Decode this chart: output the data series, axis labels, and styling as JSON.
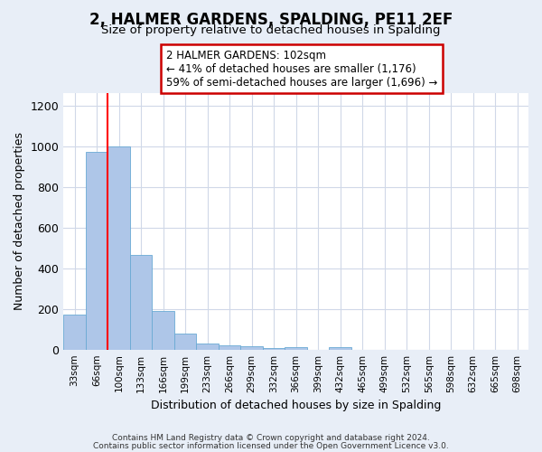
{
  "title": "2, HALMER GARDENS, SPALDING, PE11 2EF",
  "subtitle": "Size of property relative to detached houses in Spalding",
  "xlabel": "Distribution of detached houses by size in Spalding",
  "ylabel": "Number of detached properties",
  "bar_color": "#aec6e8",
  "bar_edge_color": "#6aaad4",
  "bin_labels": [
    "33sqm",
    "66sqm",
    "100sqm",
    "133sqm",
    "166sqm",
    "199sqm",
    "233sqm",
    "266sqm",
    "299sqm",
    "332sqm",
    "366sqm",
    "399sqm",
    "432sqm",
    "465sqm",
    "499sqm",
    "532sqm",
    "565sqm",
    "598sqm",
    "632sqm",
    "665sqm",
    "698sqm"
  ],
  "bin_values": [
    170,
    970,
    1000,
    465,
    190,
    80,
    28,
    20,
    15,
    8,
    10,
    0,
    12,
    0,
    0,
    0,
    0,
    0,
    0,
    0,
    0
  ],
  "property_bin_index": 2,
  "annotation_title": "2 HALMER GARDENS: 102sqm",
  "annotation_line1": "← 41% of detached houses are smaller (1,176)",
  "annotation_line2": "59% of semi-detached houses are larger (1,696) →",
  "annotation_box_color": "#ffffff",
  "annotation_box_edge": "#cc0000",
  "ylim": [
    0,
    1260
  ],
  "yticks": [
    0,
    200,
    400,
    600,
    800,
    1000,
    1200
  ],
  "footer1": "Contains HM Land Registry data © Crown copyright and database right 2024.",
  "footer2": "Contains public sector information licensed under the Open Government Licence v3.0.",
  "plot_bg_color": "#ffffff",
  "fig_bg_color": "#e8eef7",
  "grid_color": "#d0d8e8",
  "title_fontsize": 12,
  "subtitle_fontsize": 9.5,
  "ylabel_fontsize": 9,
  "xlabel_fontsize": 9
}
